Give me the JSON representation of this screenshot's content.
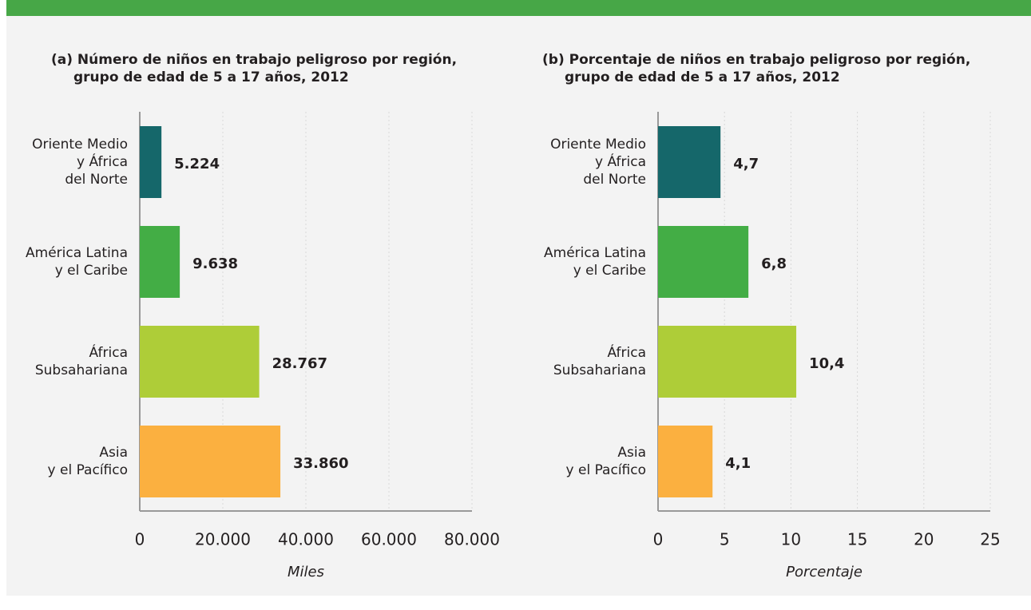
{
  "chart_data": [
    {
      "type": "barh",
      "title": [
        "(a) Número de niños en trabajo peligroso por región,",
        "grupo de edad de 5 a 17 años, 2012"
      ],
      "categories": [
        [
          "Oriente Medio",
          "y África",
          "del Norte"
        ],
        [
          "América Latina",
          "y el Caribe"
        ],
        [
          "África",
          "Subsahariana"
        ],
        [
          "Asia",
          "y el Pacífico"
        ]
      ],
      "values": [
        5224,
        9638,
        28767,
        33860
      ],
      "value_labels": [
        "5.224",
        "9.638",
        "28.767",
        "33.860"
      ],
      "colors": [
        "#15676a",
        "#43ad45",
        "#aecd38",
        "#fbb040"
      ],
      "xlim": [
        0,
        80000
      ],
      "xticks": [
        0,
        {
          "value": 20000,
          "label": "20.000"
        },
        {
          "value": 40000,
          "label": "40.000"
        },
        {
          "value": 60000,
          "label": "60.000"
        },
        {
          "value": 80000,
          "label": "80.000"
        }
      ],
      "xlabel": "Miles",
      "grid": true
    },
    {
      "type": "barh",
      "title": [
        "(b) Porcentaje de niños en trabajo peligroso por región,",
        "grupo de edad de 5 a 17 años, 2012"
      ],
      "categories": [
        [
          "Oriente Medio",
          "y África",
          "del Norte"
        ],
        [
          "América Latina",
          "y el Caribe"
        ],
        [
          "África",
          "Subsahariana"
        ],
        [
          "Asia",
          "y el Pacífico"
        ]
      ],
      "values": [
        4.7,
        6.8,
        10.4,
        4.1
      ],
      "value_labels": [
        "4,7",
        "6,8",
        "10,4",
        "4,1"
      ],
      "colors": [
        "#15676a",
        "#43ad45",
        "#aecd38",
        "#fbb040"
      ],
      "xlim": [
        0,
        25
      ],
      "xticks": [
        0,
        5,
        10,
        15,
        20,
        25
      ],
      "xlabel": "Porcentaje",
      "grid": true
    }
  ]
}
